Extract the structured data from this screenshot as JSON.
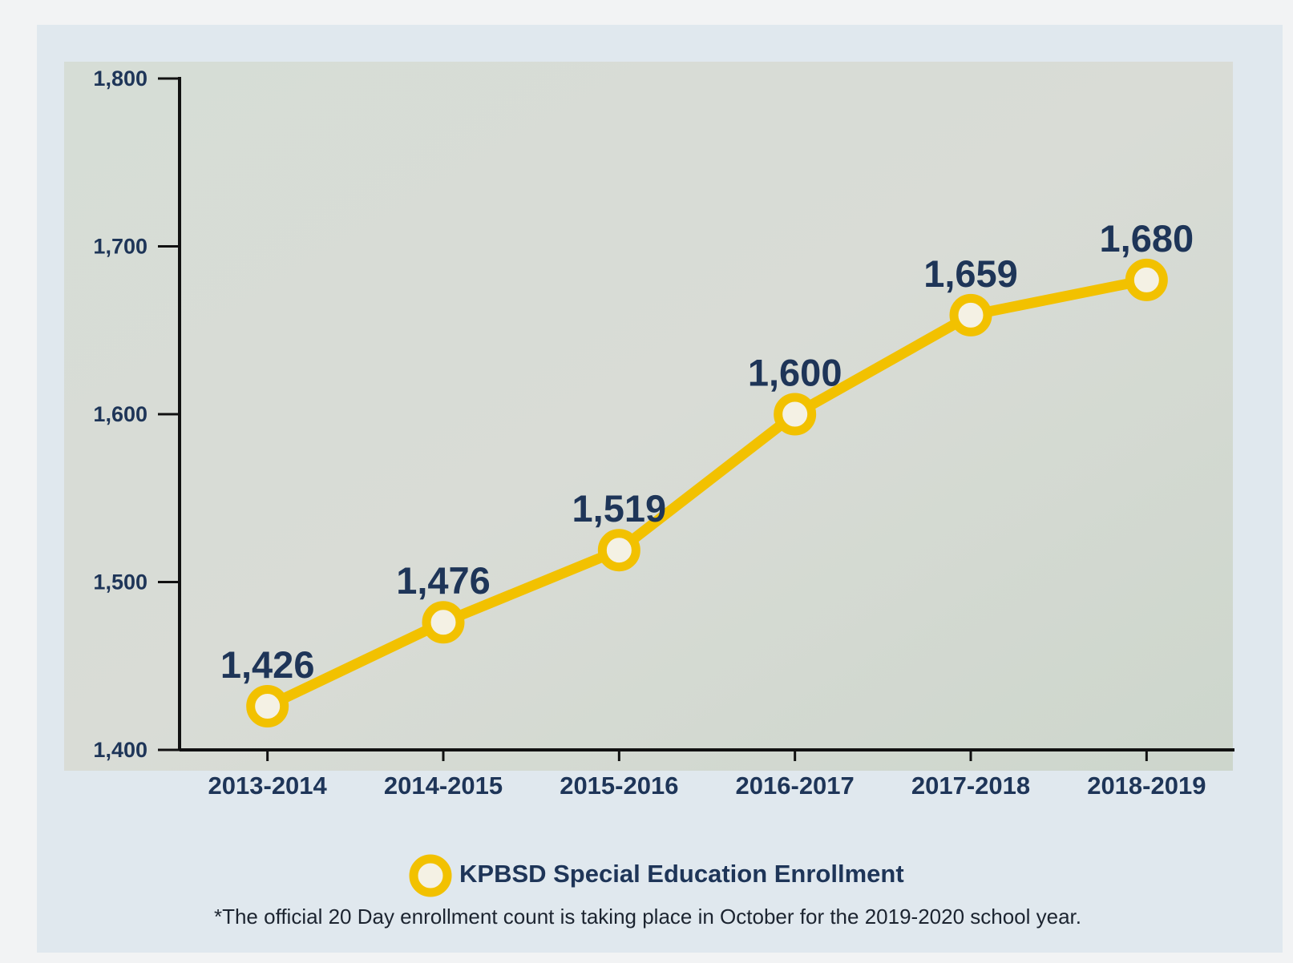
{
  "chart_data": {
    "type": "line",
    "categories": [
      "2013-2014",
      "2014-2015",
      "2015-2016",
      "2016-2017",
      "2017-2018",
      "2018-2019"
    ],
    "series": [
      {
        "name": "KPBSD Special Education Enrollment",
        "color": "#f2c100",
        "values": [
          1426,
          1476,
          1519,
          1600,
          1659,
          1680
        ],
        "value_labels": [
          "1,426",
          "1,476",
          "1,519",
          "1,600",
          "1,659",
          "1,680"
        ]
      }
    ],
    "ylim": [
      1400,
      1800
    ],
    "yticks": [
      {
        "value": 1400,
        "label": "1,400"
      },
      {
        "value": 1500,
        "label": "1,500"
      },
      {
        "value": 1600,
        "label": "1,600"
      },
      {
        "value": 1700,
        "label": "1,700"
      },
      {
        "value": 1800,
        "label": "1,800"
      }
    ],
    "legend": "bottom",
    "footnote": "*The official 20 Day enrollment count is taking place in October for the 2019-2020 school year."
  }
}
